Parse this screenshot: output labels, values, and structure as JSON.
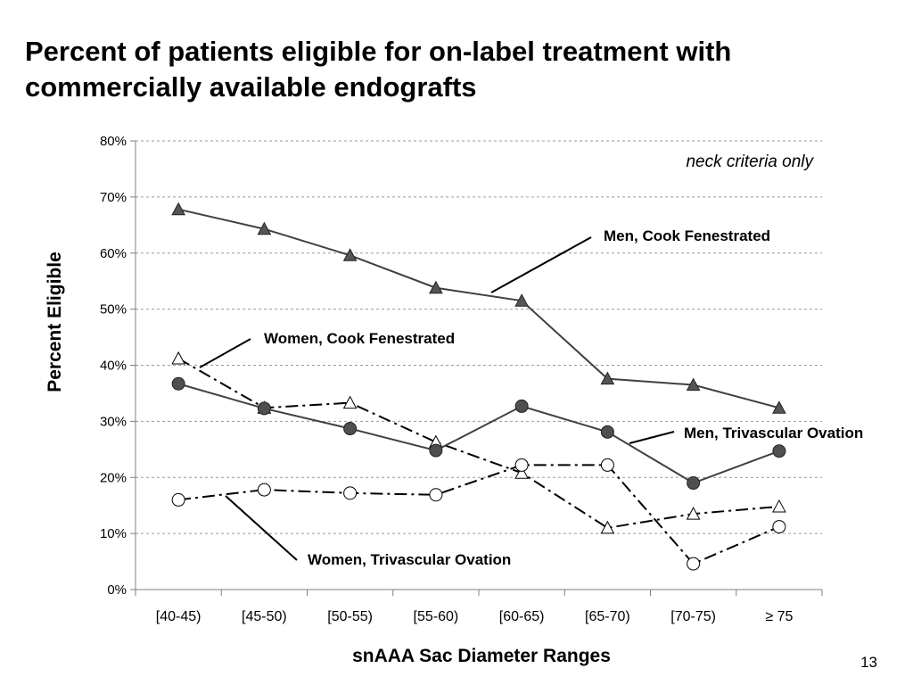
{
  "slide": {
    "title_line1": "Percent of patients eligible for on-label treatment with",
    "title_line2": "commercially available endografts",
    "page_number": "13"
  },
  "chart_data": {
    "type": "line",
    "title": "Percent of patients eligible for on-label treatment with commercially available endografts",
    "xlabel": "snAAA Sac Diameter Ranges",
    "ylabel": "Percent Eligible",
    "ylim": [
      0,
      80
    ],
    "yticks": [
      "0%",
      "10%",
      "20%",
      "30%",
      "40%",
      "50%",
      "60%",
      "70%",
      "80%"
    ],
    "grid": true,
    "annotation": "neck criteria only",
    "categories": [
      "[40-45)",
      "[45-50)",
      "[50-55)",
      "[55-60)",
      "[60-65)",
      "[65-70)",
      "[70-75)",
      "≥ 75"
    ],
    "series": [
      {
        "name": "Men, Cook Fenestrated",
        "marker": "triangle-filled",
        "line": "solid",
        "values": [
          67.8,
          64.3,
          59.6,
          53.8,
          51.5,
          37.6,
          36.5,
          32.4
        ]
      },
      {
        "name": "Women, Cook Fenestrated",
        "marker": "triangle-open",
        "line": "dash-dot",
        "values": [
          41.2,
          32.4,
          33.3,
          26.3,
          20.8,
          11.0,
          13.5,
          14.8
        ]
      },
      {
        "name": "Men, Trivascular Ovation",
        "marker": "circle-filled",
        "line": "solid",
        "values": [
          36.7,
          32.3,
          28.7,
          24.8,
          32.7,
          28.1,
          19.0,
          24.7
        ]
      },
      {
        "name": "Women, Trivascular Ovation",
        "marker": "circle-open",
        "line": "dash-dot",
        "values": [
          16.0,
          17.8,
          17.2,
          16.9,
          22.2,
          22.2,
          4.6,
          11.2
        ]
      }
    ]
  }
}
